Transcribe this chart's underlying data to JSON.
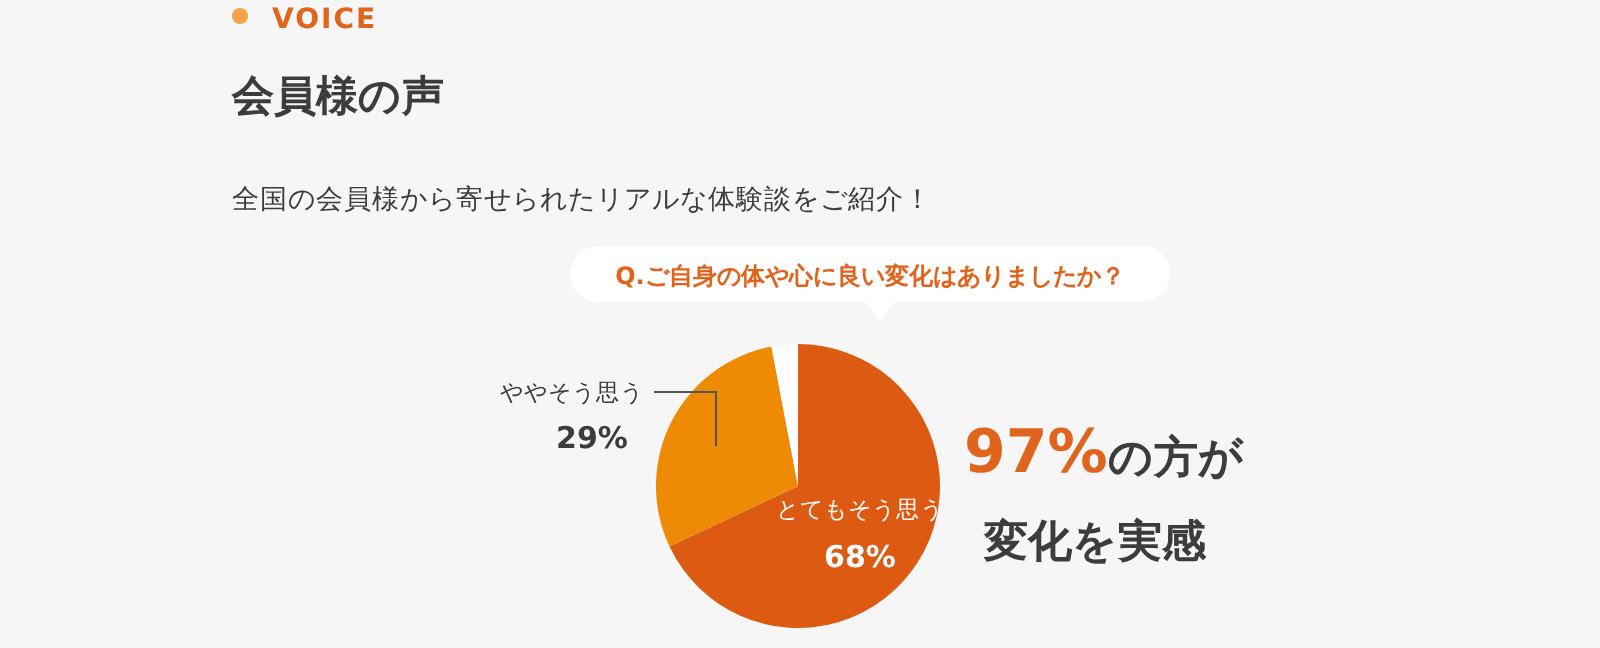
{
  "chart_data": {
    "type": "pie",
    "title": "会員様の声",
    "subtitle": "全国の会員様から寄せられたリアルな体験談をご紹介！",
    "categories": [
      "とてもそう思う",
      "ややそう思う",
      null
    ],
    "values": [
      68,
      29,
      3
    ],
    "colors": [
      "#dc5a12",
      "#ef8a05",
      "#ffffff"
    ],
    "value_labels": [
      "68%",
      "29%",
      null
    ],
    "annotations": [
      "VOICE",
      "Q.ご自身の体や心に良い変化はありましたか？",
      "**97%**の方が",
      "変化を実感"
    ]
  }
}
